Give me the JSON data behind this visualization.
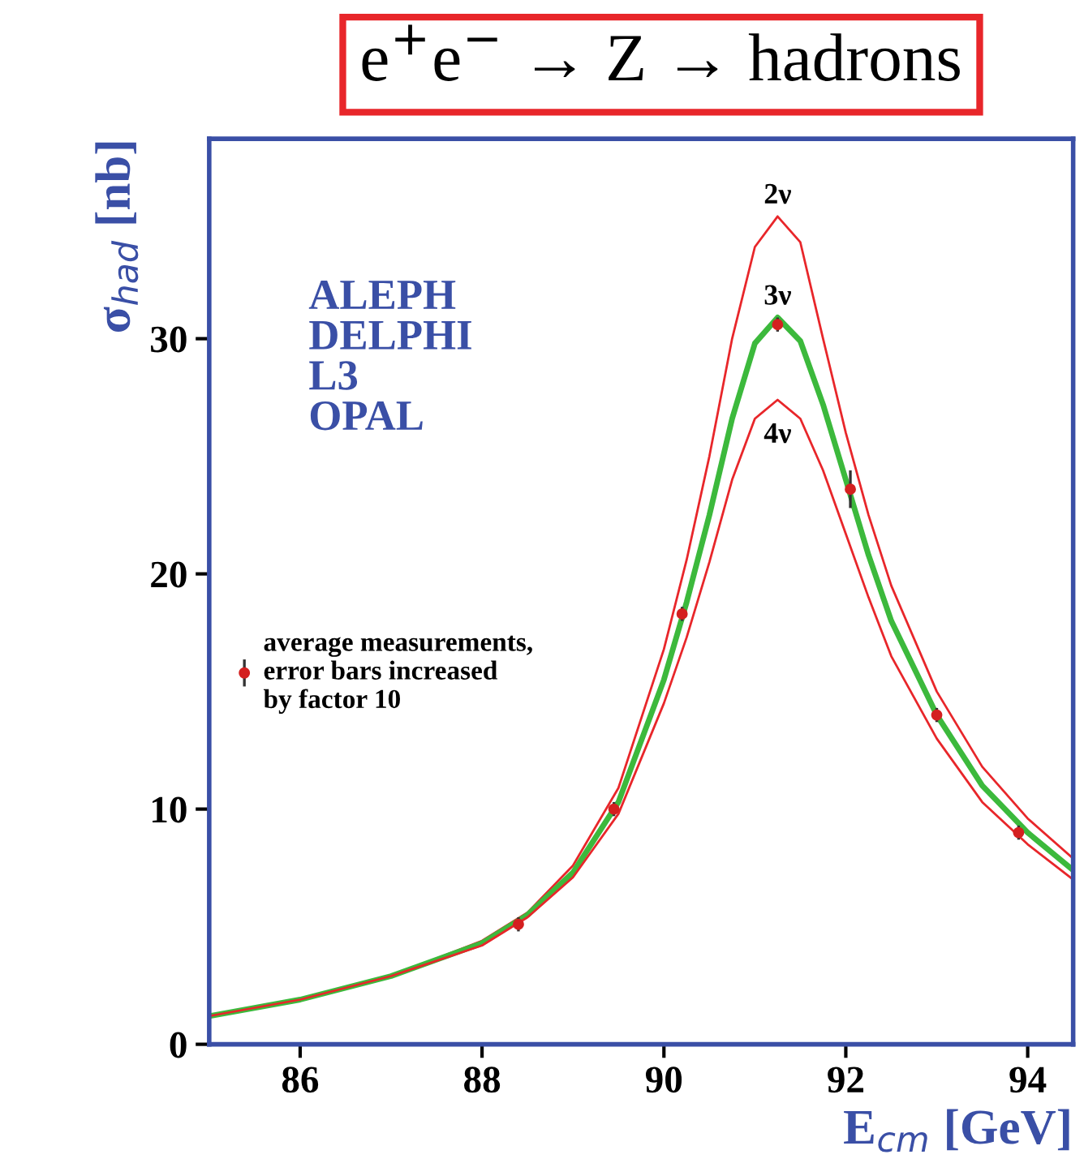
{
  "chart_data": {
    "type": "line",
    "title": "e$^{+}$e$^{−}$ → Z → hadrons",
    "xlabel": "E$_{cm}$ [GeV]",
    "ylabel": "σ$_{had}$ [nb]",
    "x": [
      85,
      86,
      87,
      88,
      88.5,
      89,
      89.5,
      90,
      90.25,
      90.5,
      90.75,
      91,
      91.25,
      91.5,
      91.75,
      92,
      92.25,
      92.5,
      93,
      93.5,
      94,
      94.5
    ],
    "series": [
      {
        "name": "2ν",
        "color": "#e8262a",
        "values": [
          1.2,
          1.9,
          2.9,
          4.4,
          5.6,
          7.6,
          10.9,
          16.8,
          20.6,
          25.0,
          30.0,
          33.9,
          35.2,
          34.1,
          30.0,
          26.0,
          22.5,
          19.5,
          15.0,
          11.8,
          9.6,
          7.9
        ]
      },
      {
        "name": "3ν",
        "color": "#3cb93c",
        "values": [
          1.2,
          1.9,
          2.9,
          4.3,
          5.5,
          7.3,
          10.3,
          15.5,
          18.8,
          22.5,
          26.6,
          29.8,
          30.9,
          29.9,
          27.2,
          24.0,
          20.8,
          18.0,
          14.0,
          11.0,
          9.0,
          7.4
        ]
      },
      {
        "name": "4ν",
        "color": "#e8262a",
        "values": [
          1.2,
          1.9,
          2.9,
          4.2,
          5.4,
          7.1,
          9.8,
          14.5,
          17.3,
          20.5,
          24.0,
          26.6,
          27.4,
          26.6,
          24.4,
          21.7,
          19.0,
          16.5,
          13.0,
          10.3,
          8.5,
          7.0
        ]
      },
      {
        "name": "average measurements,\nerror bars increased\nby factor 10",
        "type": "scatter",
        "marker": "circle",
        "color": "#d42020",
        "x": [
          88.4,
          89.45,
          90.2,
          91.25,
          92.05,
          93.0,
          93.9
        ],
        "values": [
          5.1,
          10.0,
          18.3,
          30.6,
          23.6,
          14.0,
          9.0
        ],
        "errors": [
          0.3,
          0.3,
          0.3,
          0.3,
          0.8,
          0.3,
          0.3
        ]
      }
    ],
    "annotations": [
      "ALEPH\nDELPHI\nL3\nOPAL"
    ],
    "xlim": [
      85,
      94.5
    ],
    "xticks": [
      86,
      88,
      90,
      92,
      94
    ],
    "ylim": [
      0,
      38.5
    ],
    "yticks": [
      0,
      10,
      20,
      30
    ],
    "grid": false,
    "legend": "left",
    "line_style": "solid"
  }
}
